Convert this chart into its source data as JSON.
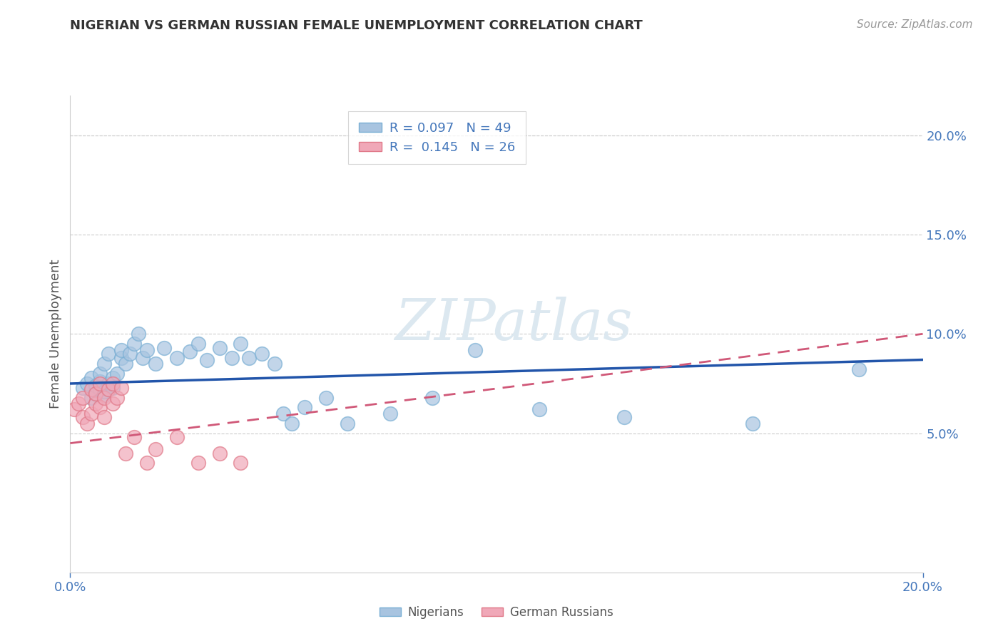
{
  "title": "NIGERIAN VS GERMAN RUSSIAN FEMALE UNEMPLOYMENT CORRELATION CHART",
  "source": "Source: ZipAtlas.com",
  "ylabel": "Female Unemployment",
  "xlim": [
    0.0,
    0.2
  ],
  "ylim": [
    -0.02,
    0.22
  ],
  "plot_ylim": [
    0.0,
    0.22
  ],
  "yticks": [
    0.05,
    0.1,
    0.15,
    0.2
  ],
  "ytick_labels": [
    "5.0%",
    "10.0%",
    "15.0%",
    "20.0%"
  ],
  "xticks": [
    0.0,
    0.2
  ],
  "xtick_labels": [
    "0.0%",
    "20.0%"
  ],
  "nigerian_x": [
    0.003,
    0.004,
    0.005,
    0.005,
    0.006,
    0.006,
    0.007,
    0.007,
    0.007,
    0.008,
    0.008,
    0.008,
    0.009,
    0.009,
    0.01,
    0.01,
    0.011,
    0.012,
    0.012,
    0.013,
    0.014,
    0.015,
    0.016,
    0.017,
    0.018,
    0.02,
    0.022,
    0.025,
    0.028,
    0.03,
    0.032,
    0.035,
    0.038,
    0.04,
    0.042,
    0.045,
    0.048,
    0.05,
    0.052,
    0.055,
    0.06,
    0.065,
    0.075,
    0.085,
    0.095,
    0.11,
    0.13,
    0.16,
    0.185
  ],
  "nigerian_y": [
    0.073,
    0.075,
    0.068,
    0.078,
    0.07,
    0.074,
    0.072,
    0.076,
    0.08,
    0.069,
    0.071,
    0.085,
    0.075,
    0.09,
    0.073,
    0.078,
    0.08,
    0.088,
    0.092,
    0.085,
    0.09,
    0.095,
    0.1,
    0.088,
    0.092,
    0.085,
    0.093,
    0.088,
    0.091,
    0.095,
    0.087,
    0.093,
    0.088,
    0.095,
    0.088,
    0.09,
    0.085,
    0.06,
    0.055,
    0.063,
    0.068,
    0.055,
    0.06,
    0.068,
    0.092,
    0.062,
    0.058,
    0.055,
    0.082
  ],
  "nigerian_trend_x0": 0.0,
  "nigerian_trend_y0": 0.075,
  "nigerian_trend_x1": 0.2,
  "nigerian_trend_y1": 0.087,
  "german_russian_x": [
    0.001,
    0.002,
    0.003,
    0.003,
    0.004,
    0.005,
    0.005,
    0.006,
    0.006,
    0.007,
    0.007,
    0.008,
    0.008,
    0.009,
    0.01,
    0.01,
    0.011,
    0.012,
    0.013,
    0.015,
    0.018,
    0.02,
    0.025,
    0.03,
    0.035,
    0.04
  ],
  "german_russian_y": [
    0.062,
    0.065,
    0.058,
    0.068,
    0.055,
    0.06,
    0.072,
    0.065,
    0.07,
    0.063,
    0.075,
    0.058,
    0.068,
    0.072,
    0.065,
    0.075,
    0.068,
    0.073,
    0.04,
    0.048,
    0.035,
    0.042,
    0.048,
    0.035,
    0.04,
    0.035
  ],
  "german_russian_trend_x0": 0.0,
  "german_russian_trend_y0": 0.045,
  "german_russian_trend_x1": 0.2,
  "german_russian_trend_y1": 0.1,
  "nigerian_color": "#a8c4e0",
  "nigerian_edge_color": "#7aafd4",
  "nigerian_line_color": "#2255aa",
  "german_russian_color": "#f0a8b8",
  "german_russian_edge_color": "#e07888",
  "german_russian_line_color": "#d05878",
  "watermark_text": "ZIPatlas",
  "watermark_color": "#dce8f0",
  "background_color": "#ffffff",
  "grid_color": "#cccccc",
  "title_color": "#333333",
  "axis_label_color": "#555555",
  "tick_label_color": "#4477bb",
  "source_color": "#999999",
  "legend_label_color": "#4477bb",
  "bottom_legend_label_color": "#555555"
}
